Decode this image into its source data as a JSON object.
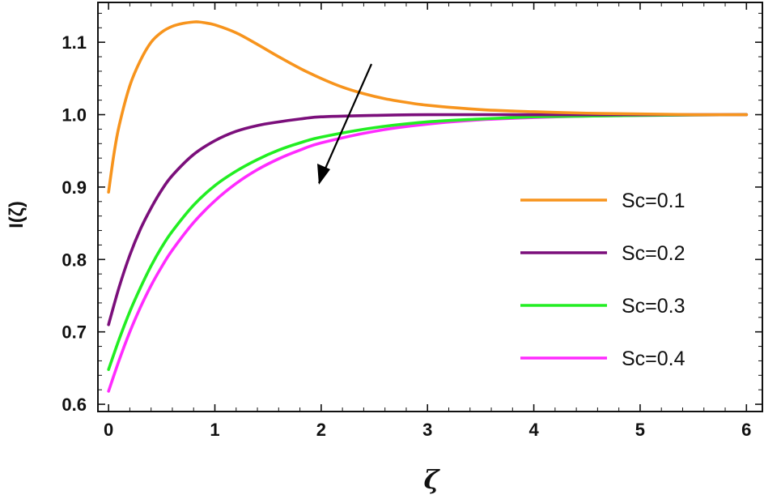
{
  "chart_data": {
    "type": "line",
    "title": "",
    "xlabel": "ζ",
    "ylabel": "I(ζ)",
    "xlim": [
      -0.1,
      6.15
    ],
    "ylim": [
      0.59,
      1.155
    ],
    "xticks": [
      0,
      1,
      2,
      3,
      4,
      5,
      6
    ],
    "xtick_labels": [
      "0",
      "1",
      "2",
      "3",
      "4",
      "5",
      "6"
    ],
    "yticks": [
      0.6,
      0.7,
      0.8,
      0.9,
      1.0,
      1.1
    ],
    "ytick_labels": [
      "0.6",
      "0.7",
      "0.8",
      "0.9",
      "1.0",
      "1.1"
    ],
    "grid": false,
    "legend_position": "right",
    "annotation": "arrow indicating decrease with increasing Sc",
    "series": [
      {
        "name": "Sc=0.1",
        "color": "#F7941D",
        "x": [
          0,
          0.05,
          0.1,
          0.2,
          0.3,
          0.4,
          0.5,
          0.6,
          0.7,
          0.8,
          0.85,
          0.9,
          1.0,
          1.2,
          1.4,
          1.6,
          1.8,
          2.0,
          2.2,
          2.4,
          2.6,
          2.8,
          3.0,
          3.5,
          4.0,
          4.5,
          5.0,
          5.5,
          6.0
        ],
        "y": [
          0.893,
          0.945,
          0.985,
          1.04,
          1.075,
          1.1,
          1.114,
          1.122,
          1.126,
          1.128,
          1.128,
          1.127,
          1.124,
          1.113,
          1.097,
          1.08,
          1.064,
          1.05,
          1.038,
          1.029,
          1.022,
          1.017,
          1.013,
          1.007,
          1.004,
          1.002,
          1.001,
          1.0,
          1.0
        ]
      },
      {
        "name": "Sc=0.2",
        "color": "#7B0F7B",
        "x": [
          0,
          0.1,
          0.2,
          0.3,
          0.4,
          0.5,
          0.6,
          0.8,
          1.0,
          1.2,
          1.4,
          1.6,
          1.8,
          2.0,
          2.5,
          3.0,
          4.0,
          5.0,
          6.0
        ],
        "y": [
          0.71,
          0.762,
          0.806,
          0.842,
          0.871,
          0.896,
          0.916,
          0.945,
          0.964,
          0.977,
          0.985,
          0.99,
          0.994,
          0.997,
          0.999,
          1.0,
          1.0,
          1.0,
          1.0
        ]
      },
      {
        "name": "Sc=0.3",
        "color": "#22EE22",
        "x": [
          0,
          0.1,
          0.2,
          0.3,
          0.4,
          0.5,
          0.6,
          0.8,
          1.0,
          1.2,
          1.4,
          1.6,
          1.8,
          2.0,
          2.5,
          3.0,
          3.5,
          4.0,
          4.5,
          5.0,
          6.0
        ],
        "y": [
          0.648,
          0.69,
          0.728,
          0.761,
          0.791,
          0.817,
          0.839,
          0.875,
          0.902,
          0.922,
          0.938,
          0.951,
          0.961,
          0.969,
          0.982,
          0.99,
          0.994,
          0.997,
          0.998,
          0.999,
          1.0
        ]
      },
      {
        "name": "Sc=0.4",
        "color": "#FF2BFF",
        "x": [
          0,
          0.1,
          0.2,
          0.3,
          0.4,
          0.5,
          0.6,
          0.8,
          1.0,
          1.2,
          1.4,
          1.6,
          1.8,
          2.0,
          2.5,
          3.0,
          3.5,
          4.0,
          4.5,
          5.0,
          6.0
        ],
        "y": [
          0.618,
          0.661,
          0.7,
          0.734,
          0.764,
          0.79,
          0.813,
          0.851,
          0.881,
          0.905,
          0.924,
          0.939,
          0.951,
          0.961,
          0.977,
          0.987,
          0.993,
          0.996,
          0.998,
          0.999,
          1.0
        ]
      }
    ]
  }
}
